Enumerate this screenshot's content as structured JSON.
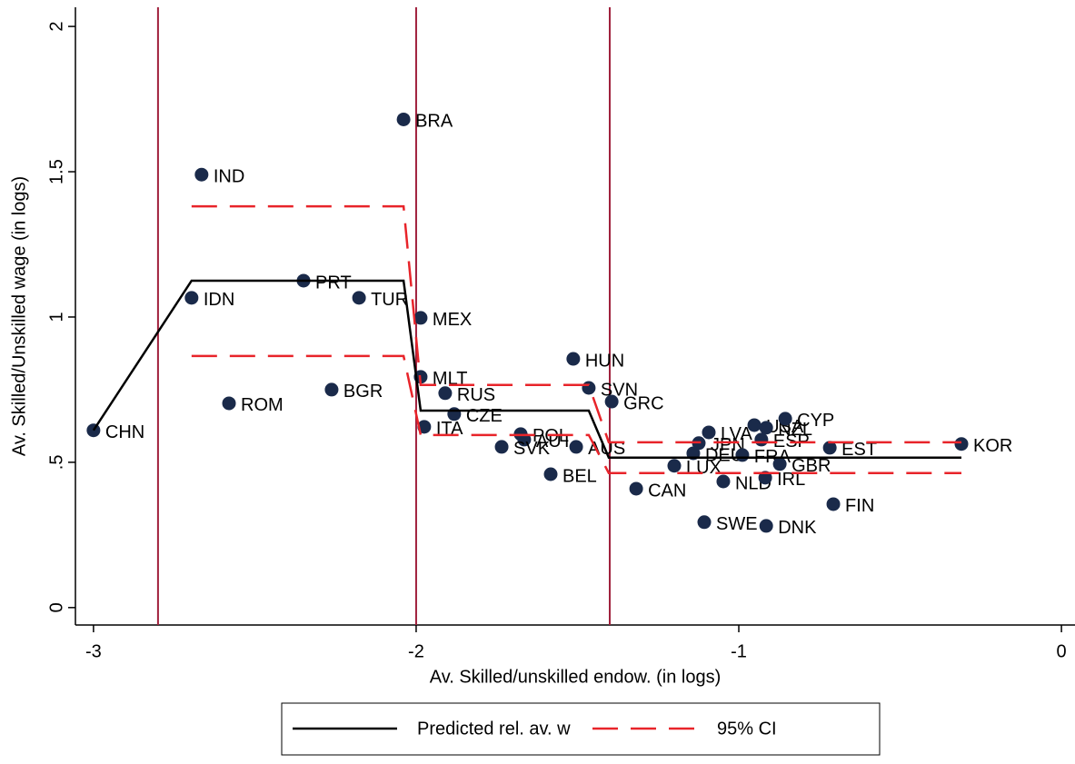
{
  "chart_data": {
    "type": "scatter",
    "x_label": "Av. Skilled/unskilled endow. (in logs)",
    "y_label": "Av. Skilled/Unskilled wage (in logs)",
    "xlim": [
      -3.056,
      0.042
    ],
    "ylim": [
      -0.06,
      2.066
    ],
    "xticks": [
      -3,
      -2,
      -1,
      0
    ],
    "yticks": [
      0,
      {
        "value": 0.5,
        "label": ".5"
      },
      1,
      1.5,
      2
    ],
    "vlines": [
      -2.8,
      -2,
      -1.4
    ],
    "vline_color": "#a0203c",
    "legend": "bottom",
    "series": [
      {
        "kind": "markers",
        "color": "#1a2a4a",
        "labels": [
          "CHN",
          "IND",
          "BRA",
          "IDN",
          "PRT",
          "TUR",
          "MEX",
          "ROM",
          "BGR",
          "MLT",
          "RUS",
          "ITA",
          "CZE",
          "HUN",
          "SVN",
          "GRC",
          "POL",
          "AUT",
          "SVK",
          "AUS",
          "BEL",
          "CAN",
          "LUX",
          "SWE",
          "DNK",
          "NLD",
          "LVA",
          "JPN",
          "DEU",
          "FRA",
          "USA",
          "NZL",
          "ESP",
          "CYP",
          "IRL",
          "GBR",
          "EST",
          "FIN",
          "KOR"
        ],
        "x": [
          -3.0,
          -2.665,
          -2.039,
          -2.696,
          -2.349,
          -2.177,
          -1.986,
          -2.58,
          -2.262,
          -1.986,
          -1.91,
          -1.975,
          -1.882,
          -1.513,
          -1.465,
          -1.394,
          -1.676,
          -1.665,
          -1.735,
          -1.504,
          -1.583,
          -1.318,
          -1.2,
          -1.107,
          -0.915,
          -1.048,
          -1.093,
          -1.124,
          -1.141,
          -0.989,
          -0.952,
          -0.915,
          -0.93,
          -0.856,
          -0.918,
          -0.873,
          -0.718,
          -0.707,
          -0.31
        ],
        "values": [
          0.61,
          1.49,
          1.68,
          1.066,
          1.125,
          1.066,
          0.997,
          0.703,
          0.75,
          0.794,
          0.738,
          0.622,
          0.666,
          0.856,
          0.756,
          0.709,
          0.597,
          0.578,
          0.553,
          0.553,
          0.459,
          0.409,
          0.488,
          0.294,
          0.281,
          0.434,
          0.603,
          0.566,
          0.531,
          0.525,
          0.628,
          0.619,
          0.578,
          0.65,
          0.447,
          0.494,
          0.55,
          0.356,
          0.563
        ]
      },
      {
        "kind": "line",
        "name": "Predicted rel. av. w",
        "color": "#000000",
        "dash": false,
        "x": [
          -3.0,
          -2.696,
          -2.039,
          -1.986,
          -1.465,
          -1.403,
          -0.31
        ],
        "values": [
          0.61,
          1.125,
          1.125,
          0.678,
          0.678,
          0.516,
          0.516
        ]
      },
      {
        "kind": "line",
        "name": "95% CI",
        "color": "#e8242a",
        "dash": true,
        "x": [
          -2.696,
          -2.039,
          -1.986,
          -1.465,
          -1.403,
          -0.31,
          null,
          -2.696,
          -2.039,
          -1.986,
          -1.465,
          -1.403,
          -0.31
        ],
        "values": [
          1.381,
          1.381,
          0.766,
          0.766,
          0.569,
          0.569,
          null,
          0.866,
          0.866,
          0.594,
          0.594,
          0.463,
          0.463
        ]
      }
    ]
  }
}
